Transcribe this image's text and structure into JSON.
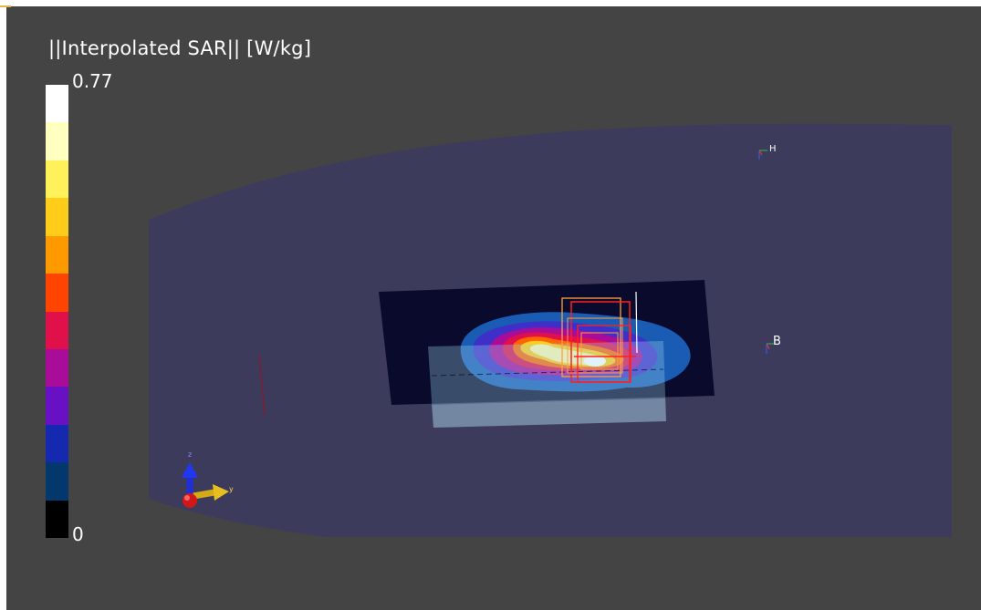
{
  "legend": {
    "title": "||Interpolated SAR|| [W/kg]",
    "max_label": "0.77",
    "min_label": "0",
    "colors": [
      "#ffffff",
      "#ffffbf",
      "#fff15a",
      "#ffcc1a",
      "#ff9900",
      "#ff4400",
      "#e0104a",
      "#a80c99",
      "#6810c4",
      "#1428b0",
      "#03386c",
      "#000000"
    ]
  },
  "markers": {
    "h_label": "H",
    "b_label": "B"
  },
  "axes": {
    "y_label": "y",
    "z_label": "z"
  },
  "colors": {
    "background": "#444444",
    "phantom": "#3d3b5c",
    "scan_area": "#0a0b2c",
    "frame_red": "#ff2020",
    "frame_orange": "#ffa040"
  }
}
